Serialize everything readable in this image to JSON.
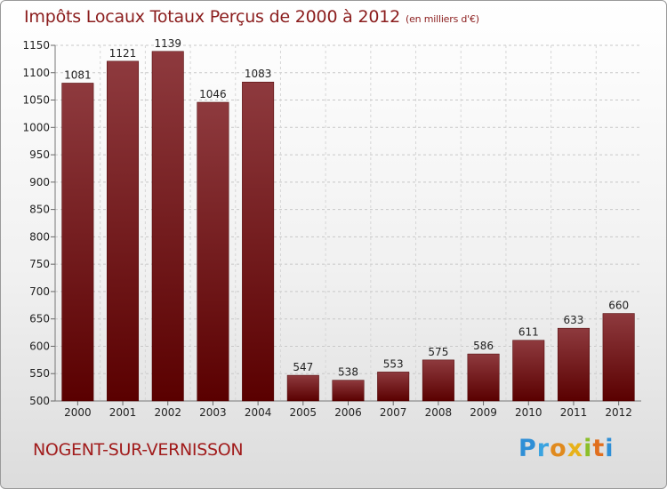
{
  "title": "Impôts Locaux Totaux Perçus de 2000 à 2012",
  "unit": "(en milliers d'€)",
  "commune": "NOGENT-SUR-VERNISSON",
  "logo_text": "Proxiti",
  "colors": {
    "bar_top": "#8e3a3e",
    "bar_bottom": "#5a0000",
    "title": "#8b1d1d"
  },
  "chart_data": {
    "type": "bar",
    "title": "Impôts Locaux Totaux Perçus de 2000 à 2012",
    "xlabel": "",
    "ylabel": "",
    "categories": [
      "2000",
      "2001",
      "2002",
      "2003",
      "2004",
      "2005",
      "2006",
      "2007",
      "2008",
      "2009",
      "2010",
      "2011",
      "2012"
    ],
    "values": [
      1081,
      1121,
      1139,
      1046,
      1083,
      547,
      538,
      553,
      575,
      586,
      611,
      633,
      660
    ],
    "ylim": [
      500,
      1150
    ],
    "yticks": [
      500,
      550,
      600,
      650,
      700,
      750,
      800,
      850,
      900,
      950,
      1000,
      1050,
      1100,
      1150
    ],
    "grid": true,
    "legend": "none"
  }
}
